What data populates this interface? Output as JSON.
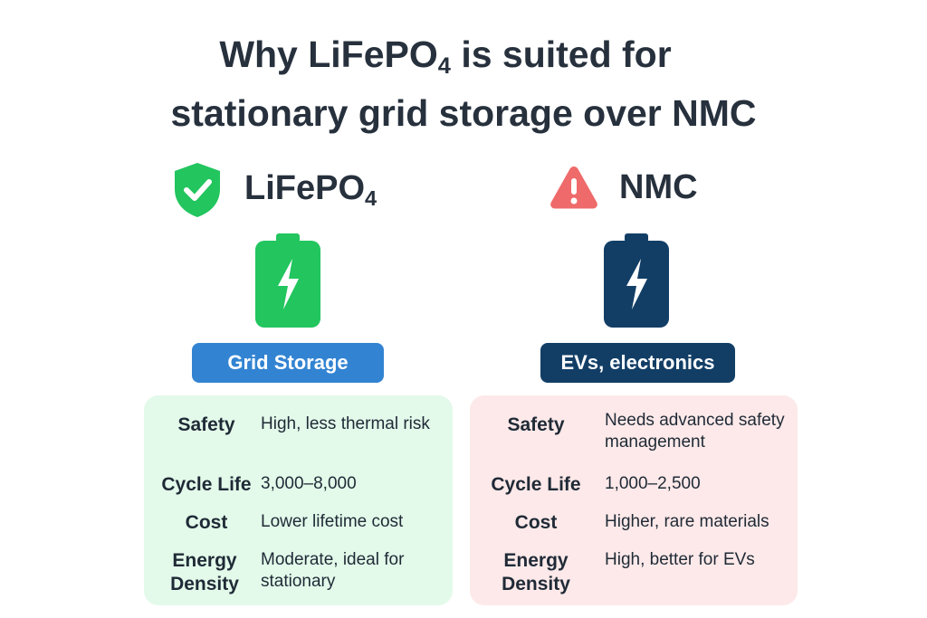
{
  "title": {
    "line1_prefix": "Why LiFePO",
    "line1_sub": "4",
    "line1_suffix": " is suited for",
    "line2": "stationary grid storage over NMC"
  },
  "left": {
    "name": "LiFePO",
    "name_sub": "4",
    "status_icon": "shield-check-icon",
    "battery_icon": "battery-bolt-icon",
    "use_case": "Grid Storage",
    "colors": {
      "accent": "#22c55e",
      "pill": "#3283d2",
      "card": "#e3faea"
    },
    "rows": [
      {
        "label": "Safety",
        "value": "High, less thermal risk"
      },
      {
        "label": "Cycle Life",
        "value": "3,000–8,000"
      },
      {
        "label": "Cost",
        "value": "Lower lifetime cost"
      },
      {
        "label": "Energy Density",
        "value": "Moderate, ideal for stationary"
      }
    ]
  },
  "right": {
    "name": "NMC",
    "status_icon": "warning-triangle-icon",
    "battery_icon": "battery-bolt-icon",
    "use_case": "EVs, electronics",
    "colors": {
      "accent": "#ef6a6a",
      "battery": "#123e66",
      "card": "#fde9e9"
    },
    "rows": [
      {
        "label": "Safety",
        "value": "Needs advanced safety management"
      },
      {
        "label": "Cycle Life",
        "value": "1,000–2,500"
      },
      {
        "label": "Cost",
        "value": "Higher, rare materials"
      },
      {
        "label": "Energy Density",
        "value": "High, better for EVs"
      }
    ]
  }
}
